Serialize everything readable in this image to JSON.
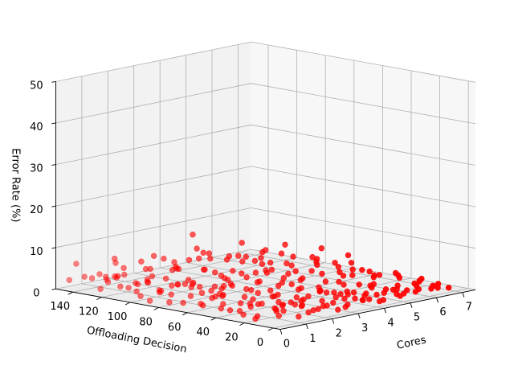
{
  "chart_data": {
    "type": "scatter",
    "projection": "3d",
    "title": "",
    "xlabel": "Cores",
    "ylabel": "Offloading Decision",
    "zlabel": "Error Rate (%)",
    "xlim": [
      0,
      7
    ],
    "ylim": [
      0,
      150
    ],
    "zlim": [
      0,
      50
    ],
    "xticks": [
      "0",
      "1",
      "2",
      "3",
      "4",
      "5",
      "6",
      "7"
    ],
    "yticks": [
      "0",
      "20",
      "40",
      "60",
      "80",
      "100",
      "120",
      "140"
    ],
    "zticks": [
      "0",
      "10",
      "20",
      "30",
      "40",
      "50"
    ],
    "grid": true,
    "legend": "none",
    "marker_color": "#ff0000",
    "series": [
      {
        "points": [
          [
            0.3,
            148,
            2
          ],
          [
            0.5,
            141,
            3
          ],
          [
            0.8,
            130,
            2
          ],
          [
            1.0,
            125,
            1
          ],
          [
            0.2,
            120,
            4
          ],
          [
            0.6,
            112,
            2
          ],
          [
            1.1,
            108,
            3
          ],
          [
            0.4,
            100,
            1
          ],
          [
            0.9,
            96,
            2
          ],
          [
            1.4,
            92,
            3
          ],
          [
            0.1,
            88,
            1
          ],
          [
            0.7,
            84,
            2
          ],
          [
            1.3,
            80,
            4
          ],
          [
            1.8,
            76,
            2
          ],
          [
            0.5,
            72,
            1
          ],
          [
            1.0,
            68,
            3
          ],
          [
            1.6,
            64,
            2
          ],
          [
            2.2,
            60,
            1
          ],
          [
            0.3,
            56,
            2
          ],
          [
            0.8,
            52,
            4
          ],
          [
            1.5,
            50,
            1
          ],
          [
            2.0,
            47,
            3
          ],
          [
            2.6,
            44,
            2
          ],
          [
            0.6,
            41,
            1
          ],
          [
            1.2,
            38,
            2
          ],
          [
            1.9,
            35,
            3
          ],
          [
            2.5,
            33,
            1
          ],
          [
            3.0,
            30,
            2
          ],
          [
            0.4,
            28,
            1
          ],
          [
            1.0,
            26,
            3
          ],
          [
            1.7,
            24,
            2
          ],
          [
            2.3,
            22,
            1
          ],
          [
            2.9,
            20,
            4
          ],
          [
            3.4,
            18,
            2
          ],
          [
            0.2,
            16,
            1
          ],
          [
            0.9,
            14,
            2
          ],
          [
            1.5,
            12,
            3
          ],
          [
            2.1,
            10,
            1
          ],
          [
            2.8,
            9,
            2
          ],
          [
            3.3,
            8,
            1
          ],
          [
            3.9,
            6,
            3
          ],
          [
            0.5,
            5,
            2
          ],
          [
            1.2,
            4,
            1
          ],
          [
            1.9,
            3,
            2
          ],
          [
            2.6,
            2,
            1
          ],
          [
            3.2,
            1,
            3
          ],
          [
            3.8,
            2,
            2
          ],
          [
            4.4,
            3,
            1
          ],
          [
            0.8,
            110,
            1
          ],
          [
            1.6,
            100,
            2
          ],
          [
            2.4,
            95,
            1
          ],
          [
            3.2,
            90,
            2
          ],
          [
            4.0,
            85,
            3
          ],
          [
            4.8,
            80,
            1
          ],
          [
            5.6,
            75,
            2
          ],
          [
            6.4,
            70,
            1
          ],
          [
            1.4,
            135,
            2
          ],
          [
            2.2,
            128,
            1
          ],
          [
            3.0,
            122,
            3
          ],
          [
            3.8,
            117,
            2
          ],
          [
            4.6,
            112,
            1
          ],
          [
            5.4,
            106,
            2
          ],
          [
            6.2,
            100,
            1
          ],
          [
            6.9,
            95,
            2
          ],
          [
            2.0,
            145,
            1
          ],
          [
            2.8,
            140,
            2
          ],
          [
            3.6,
            136,
            1
          ],
          [
            4.4,
            132,
            3
          ],
          [
            5.2,
            127,
            2
          ],
          [
            6.0,
            122,
            1
          ],
          [
            6.8,
            118,
            2
          ],
          [
            4.5,
            50,
            1
          ],
          [
            5.0,
            45,
            2
          ],
          [
            5.5,
            40,
            1
          ],
          [
            6.0,
            35,
            3
          ],
          [
            6.5,
            30,
            2
          ],
          [
            7.0,
            25,
            1
          ],
          [
            4.2,
            20,
            2
          ],
          [
            4.8,
            15,
            1
          ],
          [
            5.3,
            10,
            2
          ],
          [
            5.8,
            6,
            1
          ],
          [
            6.3,
            3,
            2
          ],
          [
            6.8,
            1,
            1
          ],
          [
            3.5,
            60,
            2
          ],
          [
            4.1,
            55,
            1
          ],
          [
            4.7,
            65,
            2
          ],
          [
            5.2,
            58,
            1
          ],
          [
            5.9,
            52,
            2
          ],
          [
            6.5,
            48,
            1
          ],
          [
            3.0,
            70,
            1
          ],
          [
            3.6,
            75,
            2
          ],
          [
            4.3,
            72,
            1
          ],
          [
            2.5,
            80,
            2
          ],
          [
            3.1,
            85,
            1
          ],
          [
            1.8,
            90,
            2
          ],
          [
            2.7,
            105,
            1
          ],
          [
            3.5,
            100,
            2
          ],
          [
            4.2,
            95,
            1
          ],
          [
            5.0,
            92,
            2
          ],
          [
            5.7,
            88,
            1
          ],
          [
            6.3,
            84,
            2
          ],
          [
            6.9,
            80,
            1
          ],
          [
            1.1,
            55,
            1
          ],
          [
            1.7,
            45,
            2
          ],
          [
            2.3,
            38,
            1
          ],
          [
            3.7,
            30,
            2
          ],
          [
            4.3,
            26,
            1
          ],
          [
            5.0,
            22,
            2
          ],
          [
            5.6,
            18,
            1
          ],
          [
            6.2,
            14,
            2
          ],
          [
            6.7,
            10,
            1
          ],
          [
            0.9,
            32,
            2
          ],
          [
            1.6,
            28,
            1
          ],
          [
            2.4,
            24,
            2
          ],
          [
            3.1,
            40,
            1
          ],
          [
            3.8,
            36,
            2
          ],
          [
            4.6,
            32,
            1
          ],
          [
            5.4,
            28,
            2
          ],
          [
            6.1,
            24,
            1
          ],
          [
            6.8,
            20,
            2
          ],
          [
            2.2,
            115,
            2
          ],
          [
            2.9,
            112,
            1
          ],
          [
            3.7,
            108,
            2
          ],
          [
            4.5,
            104,
            1
          ],
          [
            5.3,
            118,
            2
          ],
          [
            6.1,
            113,
            1
          ],
          [
            6.7,
            108,
            2
          ],
          [
            0.6,
            60,
            1
          ],
          [
            1.3,
            64,
            2
          ],
          [
            1.9,
            70,
            1
          ],
          [
            2.6,
            66,
            2
          ],
          [
            3.3,
            62,
            1
          ],
          [
            3.9,
            58,
            2
          ],
          [
            4.9,
            70,
            1
          ],
          [
            5.5,
            66,
            2
          ],
          [
            6.1,
            62,
            1
          ],
          [
            6.6,
            58,
            2
          ],
          [
            1.5,
            20,
            1
          ],
          [
            2.0,
            16,
            2
          ],
          [
            2.7,
            14,
            1
          ],
          [
            3.4,
            12,
            2
          ],
          [
            4.0,
            10,
            1
          ],
          [
            4.7,
            8,
            2
          ],
          [
            5.1,
            4,
            1
          ],
          [
            5.7,
            2,
            2
          ],
          [
            6.4,
            6,
            1
          ],
          [
            0.2,
            40,
            2
          ],
          [
            0.7,
            36,
            1
          ],
          [
            1.3,
            34,
            2
          ],
          [
            2.0,
            30,
            1
          ],
          [
            2.6,
            26,
            2
          ],
          [
            3.2,
            24,
            1
          ],
          [
            3.8,
            22,
            2
          ],
          [
            4.5,
            18,
            1
          ],
          [
            5.1,
            14,
            2
          ],
          [
            5.8,
            12,
            1
          ],
          [
            6.5,
            16,
            2
          ],
          [
            7.0,
            12,
            1
          ],
          [
            6.9,
            40,
            2
          ],
          [
            7.0,
            60,
            1
          ],
          [
            6.6,
            90,
            2
          ],
          [
            6.0,
            140,
            1
          ],
          [
            5.5,
            145,
            2
          ],
          [
            4.9,
            148,
            1
          ],
          [
            4.0,
            142,
            2
          ],
          [
            3.3,
            146,
            1
          ],
          [
            2.5,
            150,
            2
          ],
          [
            1.7,
            148,
            1
          ],
          [
            0.9,
            143,
            2
          ],
          [
            0.4,
            128,
            1
          ],
          [
            1.2,
            118,
            2
          ],
          [
            1.9,
            122,
            1
          ],
          [
            5.8,
            130,
            2
          ],
          [
            6.4,
            125,
            1
          ],
          [
            5.0,
            135,
            2
          ],
          [
            4.2,
            125,
            1
          ],
          [
            3.4,
            128,
            2
          ],
          [
            2.6,
            132,
            1
          ],
          [
            1.5,
            138,
            2
          ],
          [
            7.0,
            135,
            1
          ],
          [
            7.0,
            100,
            2
          ],
          [
            6.9,
            70,
            1
          ],
          [
            5.9,
            98,
            2
          ],
          [
            5.3,
            86,
            1
          ],
          [
            4.6,
            88,
            2
          ],
          [
            3.9,
            82,
            1
          ],
          [
            3.3,
            94,
            2
          ],
          [
            2.7,
            90,
            1
          ],
          [
            2.0,
            98,
            2
          ],
          [
            1.3,
            102,
            1
          ],
          [
            0.7,
            92,
            2
          ],
          [
            0.3,
            78,
            1
          ],
          [
            0.9,
            74,
            2
          ],
          [
            1.5,
            70,
            1
          ],
          [
            2.2,
            76,
            2
          ],
          [
            2.8,
            50,
            1
          ],
          [
            3.5,
            46,
            2
          ],
          [
            4.1,
            42,
            1
          ],
          [
            4.8,
            38,
            2
          ],
          [
            5.6,
            34,
            1
          ],
          [
            6.3,
            44,
            2
          ],
          [
            0.5,
            20,
            1
          ],
          [
            1.1,
            18,
            2
          ],
          [
            1.8,
            8,
            1
          ],
          [
            2.4,
            6,
            2
          ],
          [
            3.0,
            4,
            1
          ],
          [
            3.6,
            3,
            2
          ],
          [
            4.2,
            2,
            1
          ],
          [
            4.8,
            1,
            2
          ],
          [
            5.4,
            7,
            1
          ],
          [
            6.0,
            9,
            2
          ],
          [
            6.6,
            5,
            1
          ],
          [
            3.0,
            12,
            4
          ],
          [
            2.0,
            66,
            4
          ],
          [
            4.0,
            78,
            4
          ],
          [
            5.0,
            110,
            4
          ],
          [
            6.0,
            66,
            4
          ],
          [
            5.9,
            20,
            4
          ],
          [
            1.0,
            85,
            4
          ],
          [
            0.3,
            100,
            4
          ],
          [
            4.6,
            140,
            8
          ],
          [
            3.8,
            118,
            6
          ],
          [
            5.2,
            100,
            6
          ],
          [
            2.5,
            122,
            6
          ],
          [
            1.2,
            132,
            6
          ],
          [
            0.4,
            145,
            6
          ],
          [
            0.2,
            125,
            5
          ],
          [
            0.6,
            115,
            5
          ],
          [
            1.6,
            140,
            6
          ],
          [
            3.0,
            138,
            5
          ],
          [
            4.1,
            128,
            6
          ],
          [
            5.5,
            122,
            6
          ],
          [
            6.5,
            110,
            5
          ],
          [
            6.8,
            90,
            5
          ],
          [
            7.0,
            75,
            4
          ],
          [
            6.3,
            60,
            4
          ],
          [
            2.3,
            110,
            5
          ],
          [
            1.8,
            125,
            6
          ]
        ]
      }
    ]
  }
}
